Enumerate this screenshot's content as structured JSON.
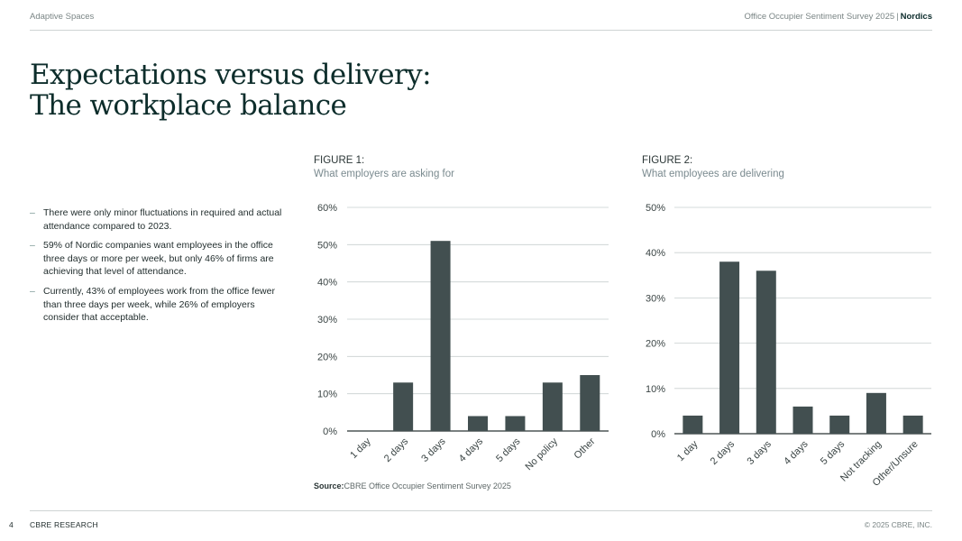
{
  "header": {
    "left": "Adaptive Spaces",
    "survey": "Office Occupier Sentiment Survey 2025",
    "separator": "|",
    "region": "Nordics"
  },
  "title": {
    "line1": "Expectations versus delivery:",
    "line2": "The workplace balance"
  },
  "bullets": {
    "dash": "–",
    "items": [
      "There were only minor fluctuations in required and actual attendance compared to 2023.",
      "59% of Nordic companies want employees in the office three days or more per week, but only 46% of firms are achieving that level of attendance.",
      "Currently, 43% of employees work from the office fewer than three days per week, while 26% of employers consider that acceptable."
    ]
  },
  "figures": {
    "fig1_label": "FIGURE 1:",
    "fig1_subtitle": "What employers are asking for",
    "fig2_label": "FIGURE 2:",
    "fig2_subtitle": "What employees are delivering"
  },
  "source": {
    "label": "Source:",
    "text": "CBRE Office Occupier Sentiment Survey 2025"
  },
  "footer": {
    "page": "4",
    "left": "CBRE RESEARCH",
    "right": "© 2025 CBRE, INC."
  },
  "colors": {
    "bar": "#424f50",
    "grid": "#c9cfcf",
    "axis": "#2a3535"
  },
  "chart_data": [
    {
      "type": "bar",
      "title": "What employers are asking for",
      "categories": [
        "1 day",
        "2 days",
        "3 days",
        "4 days",
        "5 days",
        "No policy",
        "Other"
      ],
      "values": [
        0,
        13,
        51,
        4,
        4,
        13,
        15
      ],
      "ylim": [
        0,
        60
      ],
      "yticks": [
        0,
        10,
        20,
        30,
        40,
        50,
        60
      ],
      "ytick_labels": [
        "0%",
        "10%",
        "20%",
        "30%",
        "40%",
        "50%",
        "60%"
      ],
      "xlabel": "",
      "ylabel": "",
      "grid": true
    },
    {
      "type": "bar",
      "title": "What employees are delivering",
      "categories": [
        "1 day",
        "2 days",
        "3 days",
        "4 days",
        "5 days",
        "Not tracking",
        "Other/Unsure"
      ],
      "values": [
        4,
        38,
        36,
        6,
        4,
        9,
        4
      ],
      "ylim": [
        0,
        50
      ],
      "yticks": [
        0,
        10,
        20,
        30,
        40,
        50
      ],
      "ytick_labels": [
        "0%",
        "10%",
        "20%",
        "30%",
        "40%",
        "50%"
      ],
      "xlabel": "",
      "ylabel": "",
      "grid": true
    }
  ]
}
